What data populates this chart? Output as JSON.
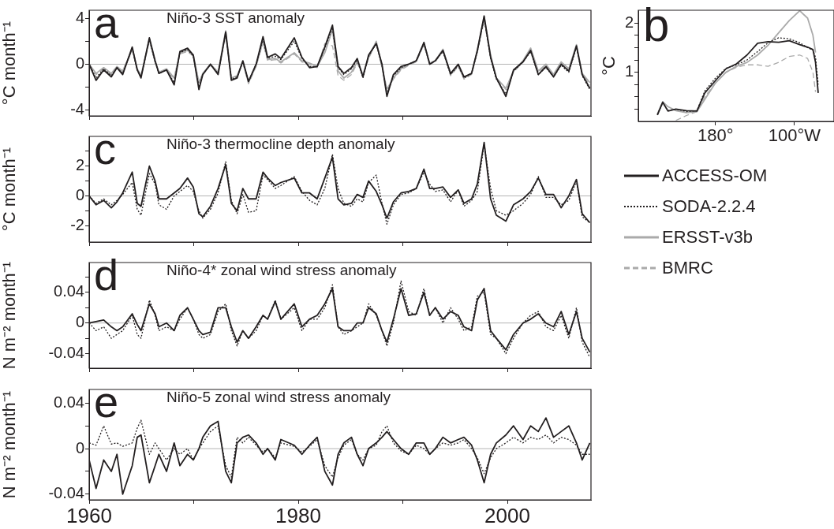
{
  "chart_data": [
    {
      "type": "line",
      "title": "Niño-3 SST anomaly",
      "ylabel": "°C month⁻¹",
      "annotations": [
        "a"
      ],
      "xlim": [
        1960,
        2008
      ],
      "xticks": [
        1960,
        {
          "value": 1970,
          "label": null
        },
        1980,
        {
          "value": 1990,
          "label": null
        },
        2000
      ],
      "ylim": [
        -4.5,
        4.7
      ],
      "yticks": [
        -4,
        {
          "value": -2,
          "label": null
        },
        0,
        {
          "value": 2,
          "label": null
        },
        4
      ],
      "tick_labels": "y",
      "grid": false,
      "ref_lines": [
        {
          "axis": "y",
          "value": 0,
          "color": "#b4b4b4"
        }
      ],
      "x": [
        1960.0,
        1960.66,
        1961.39,
        1962.12,
        1962.66,
        1963.21,
        1964.12,
        1964.6,
        1964.96,
        1965.76,
        1966.31,
        1966.67,
        1967.4,
        1968.13,
        1968.68,
        1969.41,
        1969.96,
        1970.5,
        1970.87,
        1971.6,
        1972.33,
        1973.06,
        1973.6,
        1974.15,
        1974.7,
        1975.24,
        1975.97,
        1976.63,
        1977.07,
        1977.8,
        1978.34,
        1979.62,
        1980.35,
        1981.08,
        1981.81,
        1982.54,
        1983.27,
        1983.81,
        1984.36,
        1985.09,
        1985.64,
        1986.19,
        1986.73,
        1987.46,
        1988.01,
        1988.48,
        1989.1,
        1989.83,
        1990.56,
        1991.29,
        1992.02,
        1992.57,
        1993.11,
        1993.84,
        1994.57,
        1995.3,
        1995.85,
        1996.58,
        1997.13,
        1997.78,
        1998.4,
        1998.95,
        1999.86,
        2000.59,
        2001.5,
        2002.23,
        2002.96,
        2003.69,
        2004.42,
        2005.15,
        2005.88,
        2006.61,
        2007.16,
        2007.89
      ],
      "series": [
        {
          "color": "#231f20",
          "line_style": "solid",
          "values": [
            0,
            -1.4,
            -0.5,
            -1.1,
            -0.3,
            -0.9,
            1.5,
            -0.5,
            -1.2,
            2.3,
            0.3,
            -0.8,
            -0.5,
            -1.8,
            1.1,
            1.4,
            0.8,
            -2.2,
            -0.9,
            0,
            -0.9,
            2.8,
            -1.4,
            -1.2,
            0.3,
            -1.5,
            0,
            2.4,
            0.6,
            0.9,
            0.5,
            2.3,
            0.6,
            -0.3,
            -0.2,
            1.5,
            3.4,
            -0.2,
            -0.8,
            -0.3,
            0.5,
            -1.1,
            0.8,
            1.8,
            0,
            -2.8,
            -0.9,
            -0.2,
            0,
            0.3,
            1.9,
            0,
            0.3,
            1.2,
            -0.8,
            0,
            -1.1,
            -0.8,
            1.2,
            4.2,
            0.6,
            -1.2,
            -2.8,
            -0.5,
            0.2,
            1.2,
            -0.9,
            -0.2,
            -1.1,
            0,
            -0.6,
            1.6,
            -0.9,
            -2.1
          ]
        },
        {
          "color": "#231f20",
          "line_style": "dotted",
          "values": [
            0,
            -1.2,
            -0.4,
            -1.0,
            -0.3,
            -0.8,
            1.4,
            -0.5,
            -1.1,
            2.2,
            0.2,
            -0.8,
            -0.5,
            -1.6,
            1.0,
            1.3,
            0.7,
            -2.0,
            -0.9,
            0,
            -0.8,
            2.7,
            -1.3,
            -1.1,
            0.2,
            -1.5,
            0,
            2.2,
            0.5,
            0.7,
            0.4,
            2.0,
            0.5,
            -0.2,
            -0.2,
            1.4,
            3.2,
            -0.3,
            -0.9,
            -0.4,
            0.4,
            -1.2,
            0.7,
            1.8,
            -0.1,
            -2.6,
            -1.0,
            -0.3,
            0,
            0.3,
            1.8,
            0,
            0.3,
            1.1,
            -0.9,
            -0.1,
            -1.2,
            -0.8,
            1.1,
            4.0,
            0.5,
            -1.3,
            -2.6,
            -0.6,
            0.2,
            1.1,
            -0.9,
            -0.3,
            -1.1,
            -0.1,
            -0.7,
            1.5,
            -1.0,
            -2.2
          ]
        },
        {
          "color": "#aaaaaa",
          "line_style": "solid",
          "values": [
            0,
            -0.8,
            -0.3,
            -0.8,
            -0.2,
            -0.6,
            1.3,
            -0.4,
            -1.0,
            2.2,
            0.2,
            -0.7,
            -0.4,
            -1.2,
            1.0,
            1.2,
            0.8,
            -1.6,
            -0.8,
            0,
            -0.7,
            2.9,
            -1.2,
            -1.0,
            0.2,
            -1.6,
            -0.1,
            2.0,
            0.4,
            0.5,
            0.2,
            1.0,
            0.3,
            0.1,
            -0.2,
            1.0,
            3.0,
            -0.6,
            -1.2,
            -0.7,
            0.2,
            -0.9,
            0.6,
            2.0,
            -0.2,
            -2.2,
            -1.2,
            -0.4,
            0,
            0.3,
            1.8,
            0.1,
            0.3,
            1.3,
            -0.9,
            -0.1,
            -1.2,
            -0.8,
            1.2,
            4.1,
            0.8,
            -1.2,
            -2.1,
            -0.6,
            0.3,
            1.4,
            -0.6,
            0,
            -0.9,
            0.2,
            -0.4,
            1.7,
            -0.8,
            -1.6
          ]
        },
        {
          "color": "#aaaaaa",
          "line_style": "dashed",
          "values": [
            0,
            -0.9,
            -0.4,
            -0.9,
            -0.3,
            -0.7,
            1.2,
            -0.5,
            -1.1,
            2.0,
            0.2,
            -0.8,
            -0.5,
            -1.3,
            0.9,
            1.1,
            0.7,
            -1.7,
            -0.9,
            -0.1,
            -0.8,
            2.6,
            -1.3,
            -1.1,
            0.1,
            -1.7,
            -0.2,
            1.9,
            0.3,
            0.4,
            0.1,
            0.9,
            0.2,
            0,
            -0.3,
            1.8,
            1.6,
            -1.0,
            -1.4,
            -0.9,
            0.1,
            -1.0,
            0.5,
            1.9,
            -0.3,
            -2.4,
            -1.3,
            -0.5,
            -0.1,
            0.2,
            1.7,
            0,
            0.2,
            1.2,
            -1.0,
            -0.2,
            -1.3,
            -0.9,
            1.0,
            3.8,
            0.6,
            -1.3,
            -2.2,
            -0.7,
            0.2,
            1.3,
            -0.7,
            -0.1,
            -1.0,
            0.1,
            -0.5,
            1.6,
            -0.9,
            -1.8
          ]
        }
      ]
    },
    {
      "type": "line",
      "ylabel": "°C",
      "annotations": [
        "b"
      ],
      "xlim": [
        102,
        300
      ],
      "xticks": [
        {
          "value": 180,
          "label": "180°"
        },
        {
          "value": 260,
          "label": "100°W"
        }
      ],
      "ylim": [
        0,
        2.26
      ],
      "yticks": [
        {
          "value": 0.25,
          "label": null
        },
        {
          "value": 0.5,
          "label": null
        },
        {
          "value": 0.75,
          "label": null
        },
        1,
        {
          "value": 1.25,
          "label": null
        },
        {
          "value": 1.5,
          "label": null
        },
        {
          "value": 1.75,
          "label": null
        },
        2
      ],
      "grid": false,
      "legend": "bottom",
      "x": [
        121.3,
        126.7,
        132,
        140,
        150.7,
        161.3,
        169.3,
        180,
        190.7,
        201.3,
        212,
        222.7,
        233.3,
        244,
        254.7,
        265.3,
        273.3,
        278.7,
        281.3,
        284
      ],
      "series": [
        {
          "name": "ACCESS-OM",
          "color": "#231f20",
          "line_style": "solid",
          "values": [
            0.13,
            0.39,
            0.21,
            0.25,
            0.22,
            0.21,
            0.58,
            0.83,
            1.07,
            1.17,
            1.35,
            1.59,
            1.62,
            1.61,
            1.64,
            1.56,
            1.51,
            1.46,
            1.2,
            0.58
          ]
        },
        {
          "name": "SODA-2.2.4",
          "color": "#231f20",
          "line_style": "dotted",
          "values": [
            0.14,
            0.38,
            0.22,
            0.25,
            0.2,
            0.22,
            0.62,
            0.88,
            1.08,
            1.15,
            1.25,
            1.42,
            1.6,
            1.7,
            1.68,
            1.6,
            1.5,
            1.45,
            1.3,
            0.75
          ]
        },
        {
          "name": "ERSST-v3b",
          "color": "#aaaaaa",
          "line_style": "solid",
          "values": [
            0.15,
            0.4,
            0.3,
            0.22,
            0.18,
            0.2,
            0.45,
            0.78,
            1.0,
            1.12,
            1.2,
            1.35,
            1.55,
            1.8,
            2.05,
            2.25,
            2.1,
            1.75,
            1.4,
            null
          ]
        },
        {
          "name": "BMRC",
          "color": "#aaaaaa",
          "line_style": "dashed",
          "values": [
            null,
            null,
            null,
            0.02,
            0.12,
            0.2,
            0.5,
            0.78,
            1.0,
            1.1,
            1.15,
            1.15,
            1.12,
            1.2,
            1.32,
            1.35,
            1.28,
            1.0,
            0.6,
            null
          ]
        }
      ]
    },
    {
      "type": "line",
      "title": "Niño-3 thermocline depth anomaly",
      "ylabel": "°C month⁻¹",
      "annotations": [
        "c"
      ],
      "xlim": [
        1960,
        2008
      ],
      "xticks": [
        1960,
        {
          "value": 1970,
          "label": null
        },
        1980,
        {
          "value": 1990,
          "label": null
        },
        2000
      ],
      "ylim": [
        -3.1,
        4
      ],
      "yticks": [
        -2,
        {
          "value": -1,
          "label": null
        },
        0,
        {
          "value": 1,
          "label": null
        },
        2,
        {
          "value": 3,
          "label": null
        }
      ],
      "tick_labels": "y",
      "grid": false,
      "ref_lines": [
        {
          "axis": "y",
          "value": 0,
          "color": "#b4b4b4"
        }
      ],
      "x": [
        1960.0,
        1960.66,
        1961.39,
        1962.12,
        1962.66,
        1963.21,
        1964.12,
        1964.6,
        1964.96,
        1965.76,
        1966.31,
        1966.67,
        1967.4,
        1968.13,
        1968.68,
        1969.41,
        1969.96,
        1970.5,
        1970.87,
        1971.6,
        1972.33,
        1973.06,
        1973.6,
        1974.15,
        1974.7,
        1975.24,
        1975.97,
        1976.63,
        1977.07,
        1977.8,
        1978.34,
        1979.62,
        1980.35,
        1981.08,
        1981.81,
        1982.54,
        1983.27,
        1983.81,
        1984.36,
        1985.09,
        1985.64,
        1986.19,
        1986.73,
        1987.46,
        1988.01,
        1988.48,
        1989.1,
        1989.83,
        1990.56,
        1991.29,
        1992.02,
        1992.57,
        1993.11,
        1993.84,
        1994.57,
        1995.3,
        1995.85,
        1996.58,
        1997.13,
        1997.78,
        1998.4,
        1998.95,
        1999.86,
        2000.59,
        2001.5,
        2002.23,
        2002.96,
        2003.69,
        2004.42,
        2005.15,
        2005.88,
        2006.61,
        2007.16,
        2007.89
      ],
      "series": [
        {
          "color": "#231f20",
          "line_style": "solid",
          "values": [
            0,
            -0.6,
            -0.3,
            -0.8,
            -0.4,
            0.2,
            1.6,
            -0.5,
            -0.7,
            2.0,
            1.0,
            -0.2,
            -0.2,
            0.2,
            0.5,
            1.2,
            0.6,
            -1.2,
            -1.4,
            -0.7,
            0.5,
            2.1,
            -0.5,
            -1.0,
            0.5,
            -0.2,
            -0.2,
            1.6,
            1.2,
            0.7,
            0.9,
            1.2,
            0.2,
            0.2,
            -0.2,
            1.2,
            2.6,
            -0.2,
            -0.6,
            -0.5,
            0.1,
            -0.1,
            1.0,
            0.3,
            -0.6,
            -1.5,
            -0.4,
            0.2,
            0.3,
            0.5,
            1.8,
            0.5,
            0.5,
            0.6,
            -0.1,
            0.4,
            -0.5,
            -0.2,
            0.8,
            3.6,
            -0.2,
            -1.3,
            -1.7,
            -0.6,
            -0.2,
            0.3,
            1.2,
            0.1,
            0.1,
            -0.8,
            0,
            1.1,
            -1.2,
            -1.8
          ]
        },
        {
          "color": "#231f20",
          "line_style": "dotted",
          "values": [
            0,
            -0.5,
            -0.2,
            -0.6,
            -0.3,
            0.1,
            0.9,
            -0.9,
            -1.3,
            1.5,
            0.8,
            -0.6,
            -0.9,
            0,
            0.3,
            0.7,
            0.3,
            -1.0,
            -1.5,
            -0.9,
            0.2,
            2.3,
            -0.3,
            -1.2,
            0.1,
            -1.1,
            -1.0,
            1.4,
            1.1,
            0.5,
            0.7,
            1.3,
            0.3,
            -0.3,
            -0.6,
            0.5,
            2.8,
            0.5,
            -0.5,
            -0.7,
            -0.2,
            -0.4,
            0.9,
            1.4,
            -0.5,
            -1.9,
            -0.6,
            0.1,
            0.2,
            0.5,
            1.6,
            0.8,
            0.3,
            0.4,
            -0.4,
            0.4,
            -0.7,
            -0.3,
            0.3,
            3.5,
            0.5,
            -1.0,
            -1.3,
            -1.0,
            -0.5,
            0.1,
            1.3,
            -0.1,
            -0.1,
            -0.6,
            -0.3,
            1.0,
            -1.4,
            -1.8
          ]
        }
      ]
    },
    {
      "type": "line",
      "title": "Niño-4* zonal wind stress anomaly",
      "ylabel": "N m⁻² month⁻¹",
      "annotations": [
        "d"
      ],
      "xlim": [
        1960,
        2008
      ],
      "xticks": [
        1960,
        {
          "value": 1970,
          "label": null
        },
        1980,
        {
          "value": 1990,
          "label": null
        },
        2000
      ],
      "ylim": [
        -0.059,
        0.079
      ],
      "yticks": [
        -0.04,
        {
          "value": -0.02,
          "label": null
        },
        0,
        {
          "value": 0.02,
          "label": null
        },
        0.04,
        {
          "value": 0.06,
          "label": null
        }
      ],
      "tick_labels": "y",
      "grid": false,
      "ref_lines": [
        {
          "axis": "y",
          "value": 0,
          "color": "#b4b4b4"
        }
      ],
      "x": [
        1960.0,
        1960.66,
        1961.39,
        1962.12,
        1962.66,
        1963.21,
        1964.12,
        1964.6,
        1964.96,
        1965.76,
        1966.31,
        1966.67,
        1967.4,
        1968.13,
        1968.68,
        1969.41,
        1969.96,
        1970.5,
        1970.87,
        1971.6,
        1972.33,
        1973.06,
        1973.6,
        1974.15,
        1974.7,
        1975.24,
        1975.97,
        1976.63,
        1977.07,
        1977.8,
        1978.34,
        1979.62,
        1980.35,
        1981.08,
        1981.81,
        1982.54,
        1983.27,
        1983.81,
        1984.36,
        1985.09,
        1985.64,
        1986.19,
        1986.73,
        1987.46,
        1988.01,
        1988.48,
        1989.1,
        1989.83,
        1990.56,
        1991.29,
        1992.02,
        1992.57,
        1993.11,
        1993.84,
        1994.57,
        1995.3,
        1995.85,
        1996.58,
        1997.13,
        1997.78,
        1998.4,
        1998.95,
        1999.86,
        2000.59,
        2001.5,
        2002.23,
        2002.96,
        2003.69,
        2004.42,
        2005.15,
        2005.88,
        2006.61,
        2007.16,
        2007.89
      ],
      "series": [
        {
          "color": "#231f20",
          "line_style": "solid",
          "values": [
            0,
            0.002,
            0.004,
            -0.005,
            -0.01,
            -0.005,
            0.012,
            -0.002,
            -0.01,
            0.025,
            0.012,
            -0.005,
            0,
            -0.01,
            0.01,
            0.02,
            0.005,
            -0.01,
            -0.015,
            -0.012,
            0.02,
            0.02,
            -0.005,
            -0.025,
            -0.01,
            -0.02,
            -0.005,
            0.01,
            0.005,
            0.028,
            0.005,
            0.025,
            -0.005,
            0.005,
            0.01,
            0.025,
            0.045,
            -0.005,
            -0.01,
            -0.01,
            0,
            0,
            0.02,
            0.012,
            -0.01,
            -0.025,
            0.005,
            0.045,
            0.01,
            0.012,
            0.04,
            0.01,
            0.02,
            0.005,
            0.015,
            0.01,
            -0.005,
            -0.01,
            0.03,
            0.045,
            -0.01,
            -0.02,
            -0.035,
            -0.015,
            0,
            0.005,
            0.012,
            0,
            -0.005,
            0.015,
            -0.015,
            0.015,
            -0.02,
            -0.038
          ]
        },
        {
          "color": "#231f20",
          "line_style": "dotted",
          "values": [
            0,
            -0.01,
            -0.005,
            -0.02,
            -0.015,
            -0.01,
            0.01,
            -0.015,
            -0.02,
            0.03,
            0.01,
            -0.01,
            -0.005,
            -0.01,
            0.005,
            0.02,
            0.005,
            -0.015,
            -0.02,
            -0.015,
            0.015,
            0.025,
            -0.01,
            -0.03,
            -0.01,
            -0.02,
            -0.01,
            0.01,
            0.005,
            0.03,
            0.005,
            0.02,
            -0.01,
            0.005,
            0.005,
            0.02,
            0.05,
            -0.005,
            -0.015,
            -0.01,
            -0.005,
            0,
            0.025,
            0.01,
            -0.01,
            -0.03,
            0,
            0.055,
            0.015,
            0.01,
            0.045,
            0.01,
            0.02,
            0,
            0.02,
            0.005,
            -0.01,
            -0.005,
            0.035,
            0.04,
            -0.015,
            -0.02,
            -0.04,
            -0.02,
            0,
            0.01,
            0.015,
            -0.005,
            -0.01,
            0.01,
            -0.02,
            0.02,
            -0.025,
            -0.045
          ]
        }
      ]
    },
    {
      "type": "line",
      "title": "Niño-5 zonal wind stress anomaly",
      "ylabel": "N m⁻² month⁻¹",
      "annotations": [
        "e"
      ],
      "xlim": [
        1960,
        2008
      ],
      "xticks": [
        1960,
        {
          "value": 1970,
          "label": null
        },
        1980,
        {
          "value": 1990,
          "label": null
        },
        2000
      ],
      "ylim": [
        -0.045,
        0.052
      ],
      "yticks": [
        -0.04,
        {
          "value": -0.02,
          "label": null
        },
        0,
        {
          "value": 0.02,
          "label": null
        },
        0.04
      ],
      "grid": false,
      "ref_lines": [
        {
          "axis": "y",
          "value": 0,
          "color": "#b4b4b4"
        }
      ],
      "x": [
        1960.0,
        1960.66,
        1961.39,
        1962.12,
        1962.66,
        1963.21,
        1964.12,
        1964.6,
        1964.96,
        1965.76,
        1966.31,
        1966.67,
        1967.4,
        1968.13,
        1968.68,
        1969.41,
        1969.96,
        1970.5,
        1970.87,
        1971.6,
        1972.33,
        1973.06,
        1973.6,
        1974.15,
        1974.7,
        1975.24,
        1975.97,
        1976.63,
        1977.07,
        1977.8,
        1978.34,
        1979.62,
        1980.35,
        1981.08,
        1981.81,
        1982.54,
        1983.27,
        1983.81,
        1984.36,
        1985.09,
        1985.64,
        1986.19,
        1986.73,
        1987.46,
        1988.01,
        1988.48,
        1989.1,
        1989.83,
        1990.56,
        1991.29,
        1992.02,
        1992.57,
        1993.11,
        1993.84,
        1994.57,
        1995.3,
        1995.85,
        1996.58,
        1997.13,
        1997.78,
        1998.4,
        1998.95,
        1999.86,
        2000.59,
        2001.5,
        2002.23,
        2002.96,
        2003.69,
        2004.42,
        2005.15,
        2005.88,
        2006.61,
        2007.16,
        2007.89
      ],
      "series": [
        {
          "color": "#231f20",
          "line_style": "solid",
          "values": [
            -0.01,
            -0.035,
            -0.01,
            -0.02,
            -0.005,
            -0.04,
            -0.015,
            0.01,
            0.012,
            -0.03,
            -0.015,
            -0.005,
            -0.02,
            0.005,
            -0.015,
            -0.005,
            -0.01,
            0,
            0.01,
            0.02,
            0.024,
            -0.02,
            -0.03,
            0.005,
            0.01,
            0.012,
            0.005,
            -0.005,
            0,
            -0.01,
            0.008,
            0.003,
            -0.005,
            0.003,
            0.01,
            -0.02,
            -0.032,
            -0.005,
            0.005,
            0.01,
            -0.005,
            -0.015,
            0,
            0.005,
            0.01,
            0.015,
            0.008,
            0,
            -0.005,
            0.005,
            0.005,
            -0.005,
            0,
            0.01,
            0.005,
            0.008,
            0.01,
            0.003,
            -0.01,
            -0.03,
            -0.005,
            0.005,
            0.012,
            0.02,
            0.008,
            0.02,
            0.015,
            0.027,
            0.01,
            0.015,
            0.02,
            0.005,
            -0.01,
            0.005
          ]
        },
        {
          "color": "#231f20",
          "line_style": "dotted",
          "values": [
            0.005,
            0.003,
            0.02,
            0.004,
            0.005,
            0.002,
            0.005,
            0.018,
            0.025,
            -0.005,
            0.005,
            0,
            -0.01,
            0,
            -0.005,
            0,
            -0.01,
            0,
            0.005,
            0.015,
            0.02,
            -0.015,
            -0.025,
            0.01,
            0.005,
            0.01,
            0.003,
            -0.003,
            0,
            -0.008,
            0.005,
            0.002,
            -0.003,
            0.002,
            0.008,
            -0.015,
            -0.025,
            -0.008,
            0.003,
            0.008,
            -0.005,
            -0.01,
            0,
            0.003,
            0.015,
            0.02,
            0.005,
            -0.002,
            -0.005,
            0.003,
            0,
            -0.005,
            0,
            0.005,
            0.003,
            0.005,
            0.008,
            0,
            -0.008,
            -0.022,
            -0.008,
            0,
            0.005,
            0.01,
            0.005,
            0.01,
            0.008,
            0.012,
            0.005,
            0.01,
            0.008,
            0.003,
            -0.005,
            -0.005
          ]
        }
      ]
    }
  ]
}
